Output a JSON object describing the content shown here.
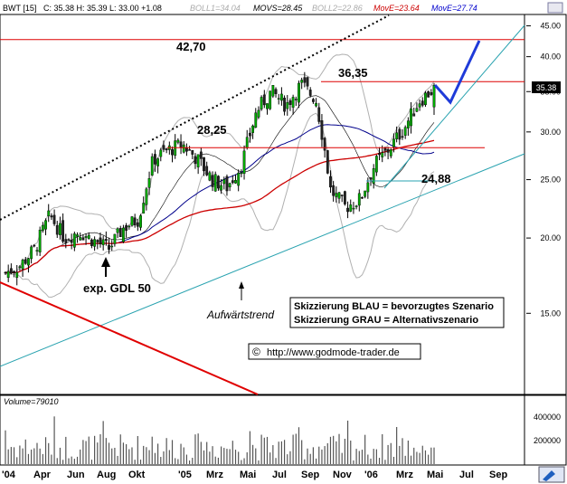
{
  "header": {
    "symbol": "BWT [15]",
    "ohlc": "C: 35.38 H: 35.39 L: 33.00 +1.08",
    "boll1": "BOLL1=34.04",
    "movs": "MOVS=28.45",
    "boll2": "BOLL2=22.86",
    "move1": "MovE=23.64",
    "move2": "MovE=27.74"
  },
  "colors": {
    "price_up": "#00aa00",
    "price_down": "#222222",
    "move_slow": "#cc0000",
    "move_fast": "#00008b",
    "bollinger": "#b0b0b0",
    "trend": "#2aa3b0",
    "resistance": "#dd0000",
    "scenario_blue": "#1f3bd9"
  },
  "annotations": {
    "level_4270": "42,70",
    "level_3635": "36,35",
    "level_2825": "28,25",
    "level_2488": "24,88",
    "exp_gdl": "exp. GDL 50",
    "uptrend": "Aufwärtstrend",
    "legend_blue": "Skizzierung BLAU = bevorzugtes Szenario",
    "legend_grey": "Skizzierung GRAU = Alternativszenario",
    "copyright_symbol": "©",
    "website": "http://www.godmode-trader.de",
    "last_price_tag": "35.38"
  },
  "volume_panel": {
    "title": "Volume=79010",
    "ticks": [
      "400000",
      "200000"
    ]
  },
  "x_axis": {
    "labels": [
      "'04",
      "Apr",
      "Jun",
      "Aug",
      "Okt",
      "'05",
      "Mrz",
      "Mai",
      "Jul",
      "Sep",
      "Nov",
      "'06",
      "Mrz",
      "Mai",
      "Jul",
      "Sep"
    ]
  },
  "chart_data": {
    "type": "candlestick",
    "title": "",
    "y_scale": "log",
    "ylim": [
      11,
      47
    ],
    "y_ticks": [
      15,
      20,
      25,
      30,
      35,
      40,
      45
    ],
    "y_tick_labels": [
      "15.00",
      "20.00",
      "25.00",
      "30.00",
      "35.00",
      "40.00",
      "45.00"
    ],
    "horizontal_levels": [
      42.7,
      36.35,
      28.25,
      24.88
    ],
    "last_close": 35.38,
    "series": [
      {
        "name": "BWT",
        "kind": "candles",
        "approx_close_path": [
          17.5,
          18.0,
          19.2,
          21.8,
          20.0,
          20.5,
          19.8,
          19.2,
          20.8,
          21.5,
          27.0,
          28.0,
          28.6,
          27.0,
          25.0,
          24.3,
          26.5,
          32.5,
          35.0,
          33.2,
          36.0,
          34.0,
          24.0,
          22.5,
          23.2,
          26.5,
          28.2,
          30.5,
          33.8,
          35.38
        ]
      },
      {
        "name": "MovE=23.64",
        "kind": "line",
        "approx_path": [
          18.5,
          18.6,
          18.8,
          19.0,
          19.4,
          19.8,
          20.4,
          21.0,
          21.7,
          22.5,
          23.3,
          23.64
        ]
      },
      {
        "name": "MovE=27.74",
        "kind": "line",
        "approx_path": [
          14.0,
          16.0,
          18.0,
          19.5,
          21.0,
          23.5,
          25.5,
          27.5,
          28.8,
          26.5,
          26.0,
          27.74
        ]
      },
      {
        "name": "BOLL1=34.04",
        "kind": "band"
      },
      {
        "name": "BOLL2=22.86",
        "kind": "band"
      },
      {
        "name": "MOVS=28.45",
        "kind": "line"
      }
    ],
    "volume": {
      "ylim": [
        0,
        450000
      ],
      "approx_max": 400000
    }
  }
}
